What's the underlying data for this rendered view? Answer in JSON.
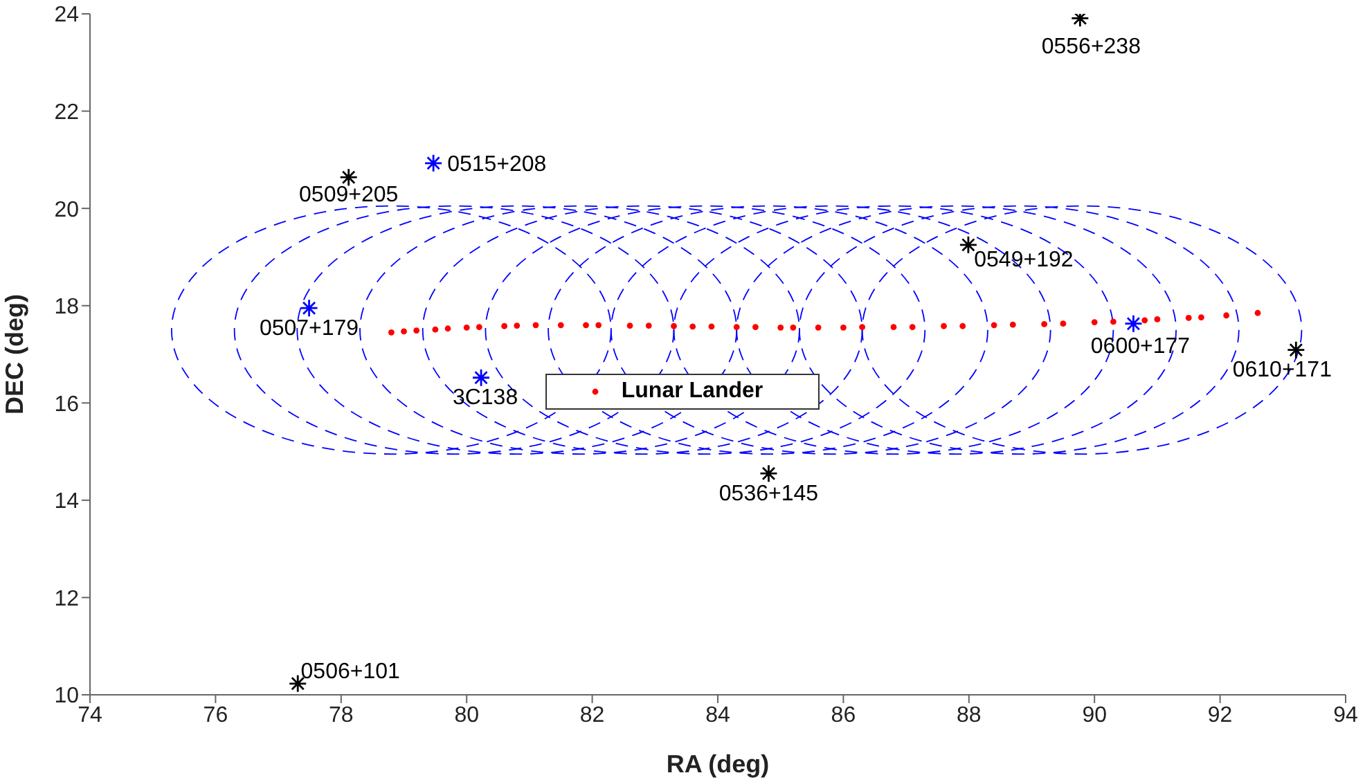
{
  "chart_data": {
    "type": "scatter",
    "xlabel": "RA (deg)",
    "ylabel": "DEC (deg)",
    "xlim": [
      74,
      94
    ],
    "xticks": [
      74,
      76,
      78,
      80,
      82,
      84,
      86,
      88,
      90,
      92,
      94
    ],
    "ylim": [
      10,
      24
    ],
    "yticks": [
      10,
      12,
      14,
      16,
      18,
      20,
      22,
      24
    ],
    "grid": false,
    "legend": "center",
    "series": [
      {
        "name": "Lunar Lander",
        "color": "#ff0000",
        "marker": "circle",
        "x": [
          78.8,
          79.0,
          79.2,
          79.5,
          79.7,
          80.0,
          80.2,
          80.6,
          80.8,
          81.1,
          81.5,
          81.9,
          82.1,
          82.6,
          82.9,
          83.3,
          83.6,
          83.9,
          84.3,
          84.6,
          85.0,
          85.2,
          85.6,
          86.0,
          86.3,
          86.8,
          87.1,
          87.6,
          87.9,
          88.4,
          88.7,
          89.2,
          89.5,
          90.0,
          90.3,
          90.8,
          91.0,
          91.5,
          91.7,
          92.1,
          92.6
        ],
        "values": [
          17.45,
          17.47,
          17.49,
          17.51,
          17.53,
          17.55,
          17.56,
          17.58,
          17.59,
          17.6,
          17.6,
          17.6,
          17.6,
          17.59,
          17.59,
          17.58,
          17.57,
          17.57,
          17.56,
          17.56,
          17.55,
          17.55,
          17.55,
          17.55,
          17.56,
          17.56,
          17.56,
          17.58,
          17.58,
          17.6,
          17.61,
          17.62,
          17.63,
          17.66,
          17.67,
          17.7,
          17.72,
          17.75,
          17.76,
          17.8,
          17.85
        ]
      },
      {
        "color": "#000000",
        "marker": "star",
        "x": [
          89.77,
          78.12,
          87.99,
          93.21,
          84.81,
          77.31
        ],
        "values": [
          23.91,
          20.64,
          19.25,
          17.09,
          14.55,
          10.23
        ]
      },
      {
        "color": "#0000ff",
        "marker": "star",
        "x": [
          79.47,
          77.49,
          90.62,
          80.23
        ],
        "values": [
          20.93,
          17.95,
          17.63,
          16.52
        ]
      }
    ],
    "annotations": [
      {
        "text": "0556+238",
        "x": 89.77,
        "y": 23.91
      },
      {
        "text": "0515+208",
        "x": 79.47,
        "y": 20.93
      },
      {
        "text": "0509+205",
        "x": 78.12,
        "y": 20.64
      },
      {
        "text": "0549+192",
        "x": 87.99,
        "y": 19.25
      },
      {
        "text": "0507+179",
        "x": 77.49,
        "y": 17.95
      },
      {
        "text": "0600+177",
        "x": 90.62,
        "y": 17.63
      },
      {
        "text": "0610+171",
        "x": 93.21,
        "y": 17.09
      },
      {
        "text": "3C138",
        "x": 80.23,
        "y": 16.52
      },
      {
        "text": "0536+145",
        "x": 84.81,
        "y": 14.55
      },
      {
        "text": "0506+101",
        "x": 77.31,
        "y": 10.23
      }
    ]
  }
}
